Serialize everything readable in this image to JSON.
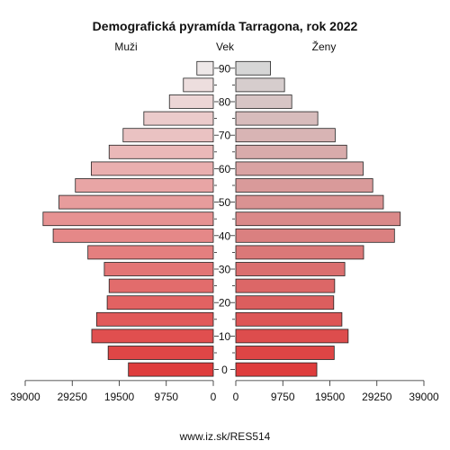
{
  "chart_data": {
    "type": "bar",
    "orientation": "horizontal-butterfly",
    "title": "Demografická pyramída Tarragona, rok 2022",
    "left_label": "Muži",
    "center_label": "Vek",
    "right_label": "Ženy",
    "footer": "www.iz.sk/RES514",
    "age_groups": [
      0,
      5,
      10,
      15,
      20,
      25,
      30,
      35,
      40,
      45,
      50,
      55,
      60,
      65,
      70,
      75,
      80,
      85,
      90
    ],
    "age_tick_labels": [
      "0",
      "10",
      "20",
      "30",
      "40",
      "50",
      "60",
      "70",
      "80",
      "90"
    ],
    "x_ticks": [
      "39000",
      "29250",
      "19500",
      "9750",
      "0"
    ],
    "x_ticks_right": [
      "0",
      "9750",
      "19500",
      "29250",
      "39000"
    ],
    "xlim": [
      0,
      39000
    ],
    "series": [
      {
        "name": "Muži",
        "values": [
          17600,
          21800,
          25200,
          24200,
          22000,
          21600,
          22600,
          26000,
          33200,
          35300,
          32000,
          28600,
          25300,
          21600,
          18700,
          14400,
          9100,
          6200,
          3400
        ]
      },
      {
        "name": "Ženy",
        "values": [
          16800,
          20400,
          23300,
          22000,
          20300,
          20500,
          22600,
          26500,
          32900,
          34100,
          30600,
          28400,
          26400,
          23000,
          20600,
          17000,
          11600,
          10100,
          7200
        ]
      }
    ]
  }
}
